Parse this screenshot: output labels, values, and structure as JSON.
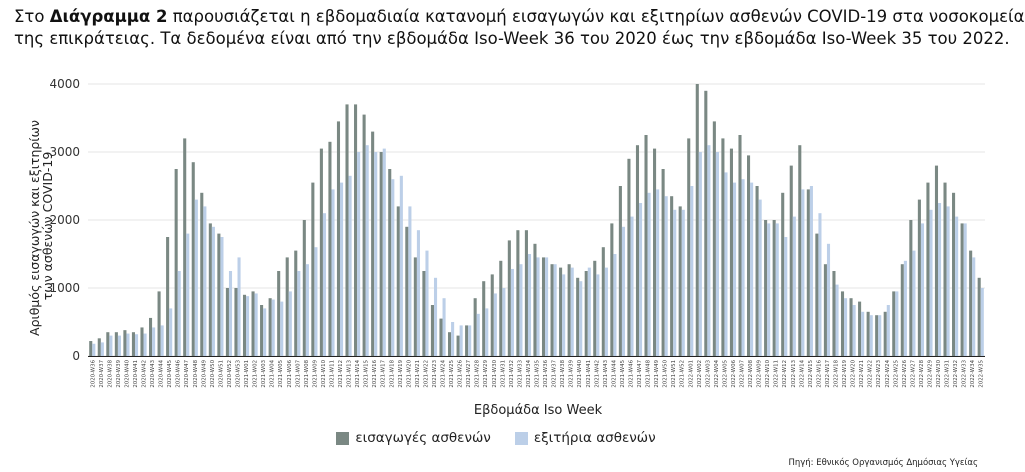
{
  "intro": {
    "prefix": "Στο ",
    "diagram_ref": "Διάγραμμα 2",
    "line1_rest": " παρουσιάζεται η εβδομαδιαία κατανομή εισαγωγών και εξιτηρίων ασθενών COVID-19 στα νοσοκομεία",
    "line2": "της επικράτειας. Τα δεδομένα είναι από την εβδομάδα Iso-Week 36 του 2020 έως την εβδομάδα Iso-Week 35 του 2022."
  },
  "source": "Πηγή: Εθνικός Οργανισμός Δημόσιας Υγείας",
  "chart_data": {
    "type": "bar",
    "xlabel": "Εβδομάδα Iso Week",
    "ylabel_lines": [
      "Αριθμός εισαγωγών και εξιτηρίων",
      "των ασθενών COVID-19"
    ],
    "ylim": [
      0,
      4000
    ],
    "yticks": [
      0,
      1000,
      2000,
      3000,
      4000
    ],
    "colors": {
      "admissions": "#7a8883",
      "discharges": "#bccfe8"
    },
    "categories": [
      "2020-W36",
      "2020-W37",
      "2020-W38",
      "2020-W39",
      "2020-W40",
      "2020-W41",
      "2020-W42",
      "2020-W43",
      "2020-W44",
      "2020-W45",
      "2020-W46",
      "2020-W47",
      "2020-W48",
      "2020-W49",
      "2020-W50",
      "2020-W51",
      "2020-W52",
      "2020-W53",
      "2021-W01",
      "2021-W02",
      "2021-W03",
      "2021-W04",
      "2021-W05",
      "2021-W06",
      "2021-W07",
      "2021-W08",
      "2021-W09",
      "2021-W10",
      "2021-W11",
      "2021-W12",
      "2021-W13",
      "2021-W14",
      "2021-W15",
      "2021-W16",
      "2021-W17",
      "2021-W18",
      "2021-W19",
      "2021-W20",
      "2021-W21",
      "2021-W22",
      "2021-W23",
      "2021-W24",
      "2021-W25",
      "2021-W26",
      "2021-W27",
      "2021-W28",
      "2021-W29",
      "2021-W30",
      "2021-W31",
      "2021-W32",
      "2021-W33",
      "2021-W34",
      "2021-W35",
      "2021-W36",
      "2021-W37",
      "2021-W38",
      "2021-W39",
      "2021-W40",
      "2021-W41",
      "2021-W42",
      "2021-W43",
      "2021-W44",
      "2021-W45",
      "2021-W46",
      "2021-W47",
      "2021-W48",
      "2021-W49",
      "2021-W50",
      "2021-W51",
      "2021-W52",
      "2022-W01",
      "2022-W02",
      "2022-W03",
      "2022-W04",
      "2022-W05",
      "2022-W06",
      "2022-W07",
      "2022-W08",
      "2022-W09",
      "2022-W10",
      "2022-W11",
      "2022-W12",
      "2022-W13",
      "2022-W14",
      "2022-W15",
      "2022-W16",
      "2022-W17",
      "2022-W18",
      "2022-W19",
      "2022-W20",
      "2022-W21",
      "2022-W22",
      "2022-W23",
      "2022-W24",
      "2022-W25",
      "2022-W26",
      "2022-W27",
      "2022-W28",
      "2022-W29",
      "2022-W30",
      "2022-W31",
      "2022-W32",
      "2022-W33",
      "2022-W34",
      "2022-W35"
    ],
    "series": [
      {
        "name": "εισαγωγές ασθενών",
        "values": [
          220,
          260,
          350,
          350,
          380,
          350,
          420,
          560,
          950,
          1750,
          2750,
          3200,
          2850,
          2400,
          1950,
          1800,
          1000,
          1000,
          900,
          950,
          750,
          850,
          1250,
          1450,
          1550,
          2000,
          2550,
          3050,
          3150,
          3450,
          3700,
          3700,
          3550,
          3300,
          3000,
          2750,
          2200,
          1900,
          1450,
          1250,
          750,
          550,
          350,
          300,
          450,
          850,
          1100,
          1200,
          1400,
          1700,
          1850,
          1850,
          1650,
          1450,
          1350,
          1300,
          1350,
          1150,
          1250,
          1400,
          1600,
          1950,
          2500,
          2900,
          3100,
          3250,
          3050,
          2750,
          2350,
          2200,
          3200,
          4000,
          3900,
          3450,
          3200,
          3050,
          3250,
          2950,
          2500,
          2000,
          2000,
          2400,
          2800,
          3100,
          2450,
          1800,
          1350,
          1250,
          950,
          850,
          800,
          650,
          600,
          650,
          950,
          1350,
          2000,
          2300,
          2550,
          2800,
          2550,
          2400,
          1950,
          1550,
          1150
        ]
      },
      {
        "name": "εξιτήρια ασθενών",
        "values": [
          180,
          200,
          300,
          300,
          330,
          320,
          330,
          420,
          450,
          700,
          1250,
          1800,
          2300,
          2200,
          1900,
          1750,
          1250,
          1450,
          880,
          920,
          700,
          830,
          800,
          950,
          1250,
          1350,
          1600,
          2100,
          2450,
          2550,
          2650,
          3000,
          3100,
          3000,
          3050,
          2600,
          2650,
          2200,
          1850,
          1550,
          1150,
          850,
          500,
          450,
          450,
          620,
          700,
          920,
          1000,
          1280,
          1350,
          1500,
          1450,
          1450,
          1350,
          1200,
          1300,
          1100,
          1300,
          1200,
          1300,
          1500,
          1900,
          2050,
          2250,
          2400,
          2450,
          2350,
          2150,
          2150,
          2500,
          3000,
          3100,
          3000,
          2700,
          2550,
          2600,
          2550,
          2300,
          1950,
          1950,
          1750,
          2050,
          2450,
          2500,
          2100,
          1650,
          1050,
          850,
          750,
          650,
          600,
          600,
          750,
          950,
          1400,
          1550,
          1950,
          2150,
          2250,
          2200,
          2050,
          1950,
          1450,
          1000
        ]
      }
    ]
  }
}
